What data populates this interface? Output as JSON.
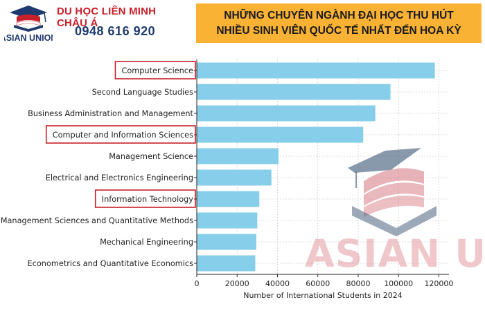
{
  "header": {
    "org_name": "DU HỌC LIÊN MINH CHÂU Á",
    "phone": "0948 616 920",
    "logo_text": "ASIAN UNION",
    "banner_line1": "NHỮNG CHUYÊN NGÀNH ĐẠI HỌC THU HÚT",
    "banner_line2": "NHIỀU SINH VIÊN QUỐC TẾ NHẤT ĐẾN HOA KỲ"
  },
  "watermark": {
    "text": "ASIAN UNION"
  },
  "colors": {
    "bar": "#87ceeb",
    "highlight_border": "#c8202a",
    "banner": "#f9b233",
    "brand_red": "#c8202a",
    "brand_blue": "#1f3a6e"
  },
  "chart_data": {
    "type": "bar",
    "orientation": "horizontal",
    "categories": [
      "Computer Science",
      "Second Language Studies",
      "Business Administration and Management",
      "Computer and Information Sciences",
      "Management Science",
      "Electrical and Electronics Engineering",
      "Information Technology",
      "Management Sciences and Quantitative Methods",
      "Mechanical Engineering",
      "Econometrics and Quantitative Economics"
    ],
    "values": [
      118000,
      96000,
      88500,
      82500,
      40500,
      37000,
      31000,
      30000,
      29500,
      29000
    ],
    "highlighted": [
      "Computer Science",
      "Computer and Information Sciences",
      "Information Technology"
    ],
    "xlabel": "Number of International Students in 2024",
    "ylabel": "",
    "xlim": [
      0,
      125000
    ],
    "xticks": [
      0,
      20000,
      40000,
      60000,
      80000,
      100000,
      120000
    ],
    "xtick_labels": [
      "0",
      "20000",
      "40000",
      "60000",
      "80000",
      "100000",
      "120000"
    ],
    "grid": true
  }
}
